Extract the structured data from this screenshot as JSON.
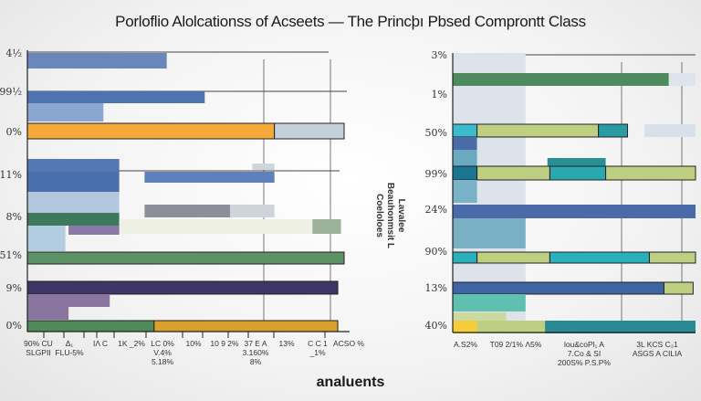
{
  "title": "Porloflio Alolcationss of  Acseets — The Princþı Pbsed Comprontt Class",
  "xlabel": "analuents",
  "vertical_label": [
    "Lavalee",
    "Beauhonmsit L",
    "Coeloloes"
  ],
  "chart_data": [
    {
      "type": "bar",
      "orientation": "horizontal-stacked",
      "categories": [
        "4½",
        "99½",
        "0%",
        "11%",
        "8%",
        "51%",
        "9%",
        "0%"
      ],
      "xlim": [
        0,
        100
      ],
      "grid": true,
      "xticks": [
        "90% CU SLGPII",
        "Δ₁ FLU-5%",
        "IΛ C",
        "1K _2%",
        "LC 0% V.4% 5.18%",
        "10%",
        "10 9 2%",
        "37 E A 3.160% 8%",
        "13%",
        "C C 1 _1%",
        "ACSO %"
      ],
      "bars": [
        {
          "segments": [
            {
              "start": 0,
              "end": 44,
              "color": "#6b86bb"
            }
          ]
        },
        {
          "segments": [
            {
              "start": 0,
              "end": 56,
              "color": "#4f72b0"
            }
          ]
        },
        {
          "segments": [
            {
              "start": 0,
              "end": 24,
              "color": "#8ba7d1"
            }
          ]
        },
        {
          "segments": [
            {
              "start": 0,
              "end": 78,
              "color": "#f5a93a"
            },
            {
              "start": 78,
              "end": 100,
              "color": "#c6d0da"
            }
          ]
        },
        {
          "segments": [
            {
              "start": 0,
              "end": 29,
              "color": "#5578b5"
            }
          ]
        },
        {
          "segments": [
            {
              "start": 71,
              "end": 78,
              "color": "#cfd5dc"
            }
          ]
        },
        {
          "segments": [
            {
              "start": 0,
              "end": 29,
              "color": "#4a6fae"
            }
          ]
        },
        {
          "segments": [
            {
              "start": 37,
              "end": 78,
              "color": "#5f81bb"
            }
          ]
        },
        {
          "segments": [
            {
              "start": 0,
              "end": 29,
              "color": "#b3c8de"
            }
          ]
        },
        {
          "segments": [
            {
              "start": 37,
              "end": 64,
              "color": "#8e8e98"
            },
            {
              "start": 64,
              "end": 78,
              "color": "#cfd3da"
            }
          ]
        },
        {
          "segments": [
            {
              "start": 0,
              "end": 29,
              "color": "#3d7a5c"
            }
          ]
        },
        {
          "segments": [
            {
              "start": 29,
              "end": 90,
              "color": "#eef0e4"
            },
            {
              "start": 90,
              "end": 99,
              "color": "#9cb29a"
            }
          ]
        },
        {
          "segments": [
            {
              "start": 0,
              "end": 12,
              "color": "#b3cde0"
            }
          ]
        },
        {
          "segments": [
            {
              "start": 13,
              "end": 29,
              "color": "#8a79a6"
            }
          ]
        },
        {
          "segments": [
            {
              "start": 0,
              "end": 100,
              "color": "#5d9166"
            }
          ]
        },
        {
          "segments": [
            {
              "start": 0,
              "end": 98,
              "color": "#3f3566"
            }
          ]
        },
        {
          "segments": [
            {
              "start": 0,
              "end": 26,
              "color": "#8a74a0"
            }
          ]
        },
        {
          "segments": [
            {
              "start": 0,
              "end": 13,
              "color": "#8a74a0"
            }
          ]
        },
        {
          "segments": [
            {
              "start": 0,
              "end": 40,
              "color": "#4f8a5a"
            },
            {
              "start": 40,
              "end": 98,
              "color": "#d9a02c"
            }
          ]
        }
      ]
    },
    {
      "type": "bar",
      "orientation": "horizontal-stacked",
      "categories": [
        "3%",
        "1%",
        "50%",
        "99%",
        "24%",
        "90%",
        "13%",
        "40%"
      ],
      "xlim": [
        0,
        100
      ],
      "grid": true,
      "xticks": [
        "A.S2%",
        "T09 2/1% Λ5%",
        "lou&coPl₁ A 7.Co & SI 200S% P.S.P%",
        "3L KCS C₂1 ASGS A CILIA"
      ],
      "bars": [
        {
          "segments": [
            {
              "start": 0,
              "end": 30,
              "color": "#dde3ea"
            }
          ]
        },
        {
          "segments": [
            {
              "start": 0,
              "end": 89,
              "color": "#4f8a5e"
            },
            {
              "start": 89,
              "end": 100,
              "color": "#dde4ec"
            }
          ]
        },
        {
          "segments": [
            {
              "start": 0,
              "end": 10,
              "color": "#3bbccc"
            },
            {
              "start": 10,
              "end": 60,
              "color": "#bfcf82"
            },
            {
              "start": 60,
              "end": 72,
              "color": "#2a9aa3"
            }
          ]
        },
        {
          "segments": [
            {
              "start": 79,
              "end": 100,
              "color": "#d8e0ea"
            }
          ]
        },
        {
          "segments": [
            {
              "start": 0,
              "end": 10,
              "color": "#4a6aa8"
            }
          ]
        },
        {
          "segments": [
            {
              "start": 0,
              "end": 10,
              "color": "#6aa9c0"
            }
          ]
        },
        {
          "segments": [
            {
              "start": 39,
              "end": 63,
              "color": "#2a8e95"
            }
          ]
        },
        {
          "segments": [
            {
              "start": 0,
              "end": 10,
              "color": "#1a7690"
            },
            {
              "start": 10,
              "end": 40,
              "color": "#bfcf82"
            },
            {
              "start": 40,
              "end": 63,
              "color": "#2aa8b0"
            },
            {
              "start": 63,
              "end": 100,
              "color": "#bfcf82"
            }
          ]
        },
        {
          "segments": [
            {
              "start": 0,
              "end": 10,
              "color": "#7ab2c8"
            }
          ]
        },
        {
          "segments": [
            {
              "start": 0,
              "end": 100,
              "color": "#4a6aa8"
            }
          ]
        },
        {
          "segments": [
            {
              "start": 0,
              "end": 30,
              "color": "#7ab0c4"
            }
          ]
        },
        {
          "segments": [
            {
              "start": 0,
              "end": 10,
              "color": "#2ab0bc"
            },
            {
              "start": 10,
              "end": 40,
              "color": "#bfcf82"
            },
            {
              "start": 40,
              "end": 81,
              "color": "#2ab0bc"
            },
            {
              "start": 81,
              "end": 100,
              "color": "#bfcf82"
            }
          ]
        },
        {
          "segments": [
            {
              "start": 0,
              "end": 87,
              "color": "#3f64a3"
            },
            {
              "start": 87,
              "end": 99,
              "color": "#bfcf82"
            }
          ]
        },
        {
          "segments": [
            {
              "start": 0,
              "end": 30,
              "color": "#5fc0b0"
            }
          ]
        },
        {
          "segments": [
            {
              "start": 0,
              "end": 22,
              "color": "#ccd9a0"
            }
          ]
        },
        {
          "segments": [
            {
              "start": 0,
              "end": 10,
              "color": "#f5cc3a"
            },
            {
              "start": 10,
              "end": 38,
              "color": "#bfcf82"
            },
            {
              "start": 38,
              "end": 100,
              "color": "#2a8a94"
            }
          ]
        }
      ]
    }
  ]
}
